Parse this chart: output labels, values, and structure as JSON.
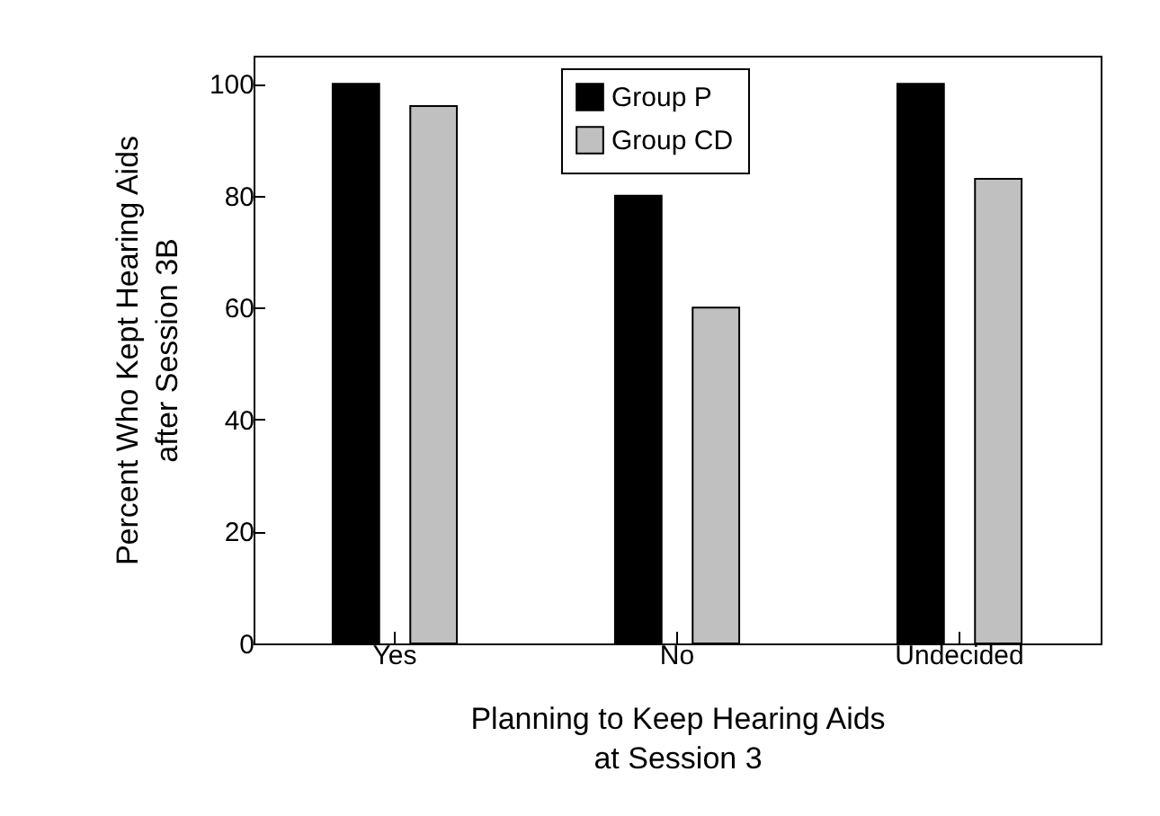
{
  "chart_data": {
    "type": "bar",
    "xlabel": "Planning to Keep Hearing Aids\nat Session 3",
    "ylabel": "Percent Who Kept Hearing Aids\nafter Session 3B",
    "categories": [
      "Yes",
      "No",
      "Undecided"
    ],
    "series": [
      {
        "name": "Group P",
        "color": "#000000",
        "values": [
          100,
          80,
          100
        ]
      },
      {
        "name": "Group CD",
        "color": "#c0c0c0",
        "values": [
          96,
          60,
          83
        ]
      }
    ],
    "ylim": [
      0,
      105
    ],
    "yticks": [
      0,
      20,
      40,
      60,
      80,
      100
    ],
    "grid": false,
    "legend": "top"
  }
}
